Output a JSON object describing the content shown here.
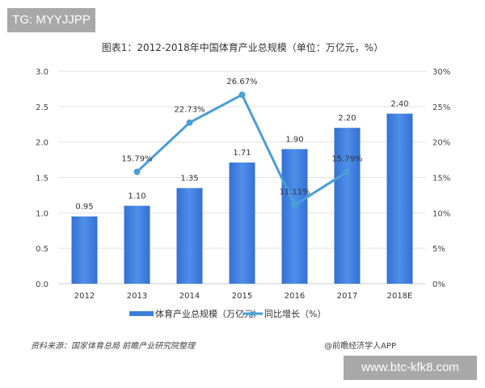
{
  "watermarks": {
    "tg": "TG: MYYJJPP",
    "site": "www.btc-kfk8.com"
  },
  "source": "资料来源：国家体育总局 前瞻产业研究院整理",
  "credit": "@前瞻经济学人APP",
  "chart_data": {
    "type": "bar",
    "title": "图表1：2012-2018年中国体育产业总规模（单位：万亿元，%）",
    "categories": [
      "2012",
      "2013",
      "2014",
      "2015",
      "2016",
      "2017",
      "2018E"
    ],
    "series": [
      {
        "name": "体育产业总规模（万亿元）",
        "type": "bar",
        "axis": "left",
        "color": "#3d7ddb",
        "values": [
          0.95,
          1.1,
          1.35,
          1.71,
          1.9,
          2.2,
          2.4
        ],
        "labels": [
          "0.95",
          "1.10",
          "1.35",
          "1.71",
          "1.90",
          "2.20",
          "2.40"
        ]
      },
      {
        "name": "同比增长（%）",
        "type": "line",
        "axis": "right",
        "color": "#4a9fd8",
        "values": [
          null,
          15.79,
          22.73,
          26.67,
          11.11,
          15.79,
          null
        ],
        "labels": [
          "",
          "15.79%",
          "22.73%",
          "26.67%",
          "11.11%",
          "15.79%",
          ""
        ]
      }
    ],
    "left_axis": {
      "ylim": [
        0,
        3.0
      ],
      "ticks": [
        "0.0",
        "0.5",
        "1.0",
        "1.5",
        "2.0",
        "2.5",
        "3.0"
      ]
    },
    "right_axis": {
      "ylim": [
        0,
        30
      ],
      "ticks": [
        "0%",
        "5%",
        "10%",
        "15%",
        "20%",
        "25%",
        "30%"
      ]
    },
    "grid": true,
    "legend": "bottom"
  }
}
